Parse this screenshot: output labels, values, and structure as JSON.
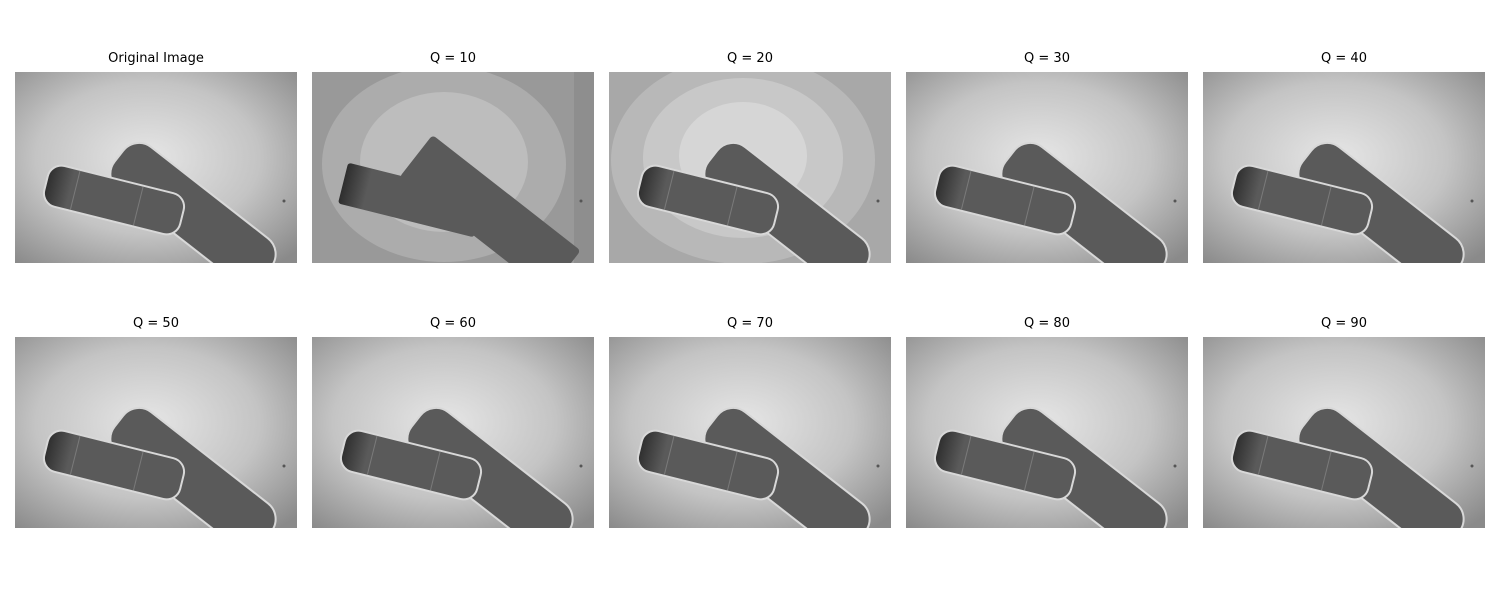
{
  "figure": {
    "panels": [
      {
        "title": "Original Image",
        "quality": null,
        "content": "bandage-strips-icon"
      },
      {
        "title": "Q = 10",
        "quality": 10,
        "content": "bandage-strips-icon"
      },
      {
        "title": "Q = 20",
        "quality": 20,
        "content": "bandage-strips-icon"
      },
      {
        "title": "Q = 30",
        "quality": 30,
        "content": "bandage-strips-icon"
      },
      {
        "title": "Q = 40",
        "quality": 40,
        "content": "bandage-strips-icon"
      },
      {
        "title": "Q = 50",
        "quality": 50,
        "content": "bandage-strips-icon"
      },
      {
        "title": "Q = 60",
        "quality": 60,
        "content": "bandage-strips-icon"
      },
      {
        "title": "Q = 70",
        "quality": 70,
        "content": "bandage-strips-icon"
      },
      {
        "title": "Q = 80",
        "quality": 80,
        "content": "bandage-strips-icon"
      },
      {
        "title": "Q = 90",
        "quality": 90,
        "content": "bandage-strips-icon"
      }
    ]
  },
  "colors": {
    "background_light": "#e6e6e6",
    "background_dark": "#8a8a8a",
    "strip_fill": "#5a5a5a",
    "strip_dark": "#2e2e2e",
    "strip_edge": "#d8d8d8"
  }
}
